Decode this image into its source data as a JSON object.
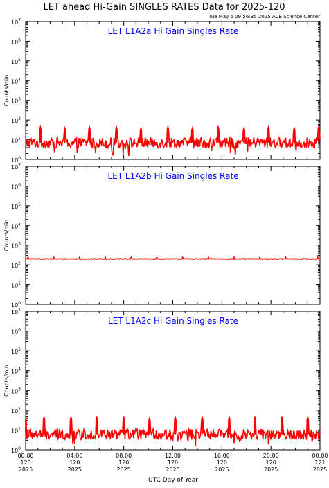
{
  "page": {
    "title": "LET ahead Hi-Gain SINGLES RATES Data for 2025-120",
    "timestamp": "Tue May  6 09:56:35 2025 ACE Science Center",
    "xlabel": "UTC Day of Year",
    "colors": {
      "trace": "#ff0000",
      "panel_title": "#0000ff",
      "axes": "#000000"
    }
  },
  "chart_data": [
    {
      "type": "line",
      "title": "LET L1A2a Hi Gain Singles Rate",
      "ylabel": "Counts/min",
      "yscale": "log",
      "ylim": [
        1,
        10000000
      ],
      "xlim": [
        0,
        24
      ],
      "x_unit": "hours UTC, day 120 2025",
      "series": [
        {
          "baseline": 7,
          "spikes": [
            {
              "x": 1.2,
              "y": 45
            },
            {
              "x": 3.2,
              "y": 40
            },
            {
              "x": 5.2,
              "y": 45
            },
            {
              "x": 7.4,
              "y": 45
            },
            {
              "x": 9.4,
              "y": 40
            },
            {
              "x": 11.6,
              "y": 45
            },
            {
              "x": 13.6,
              "y": 40
            },
            {
              "x": 15.7,
              "y": 45
            },
            {
              "x": 17.8,
              "y": 40
            },
            {
              "x": 19.8,
              "y": 45
            },
            {
              "x": 21.9,
              "y": 40
            },
            {
              "x": 23.9,
              "y": 45
            }
          ]
        }
      ]
    },
    {
      "type": "line",
      "title": "LET L1A2b Hi Gain Singles Rate",
      "ylabel": "Counts/min",
      "yscale": "log",
      "ylim": [
        1,
        10000000
      ],
      "xlim": [
        0,
        24
      ],
      "x_unit": "hours UTC, day 120 2025",
      "series": [
        {
          "baseline": 200,
          "spikes": [
            {
              "x": 0.2,
              "y": 250
            },
            {
              "x": 2.3,
              "y": 240
            },
            {
              "x": 4.4,
              "y": 240
            },
            {
              "x": 6.5,
              "y": 240
            },
            {
              "x": 8.6,
              "y": 240
            },
            {
              "x": 10.7,
              "y": 240
            },
            {
              "x": 12.8,
              "y": 240
            },
            {
              "x": 14.9,
              "y": 240
            },
            {
              "x": 17.0,
              "y": 240
            },
            {
              "x": 19.1,
              "y": 240
            },
            {
              "x": 21.2,
              "y": 240
            },
            {
              "x": 23.8,
              "y": 260
            }
          ]
        }
      ]
    },
    {
      "type": "line",
      "title": "LET L1A2c Hi Gain Singles Rate",
      "ylabel": "Counts/min",
      "yscale": "log",
      "ylim": [
        1,
        10000000
      ],
      "xlim": [
        0,
        24
      ],
      "x_unit": "hours UTC, day 120 2025",
      "series": [
        {
          "baseline": 6,
          "spikes": [
            {
              "x": 0.0,
              "y": 40
            },
            {
              "x": 1.5,
              "y": 45
            },
            {
              "x": 3.7,
              "y": 45
            },
            {
              "x": 5.8,
              "y": 45
            },
            {
              "x": 8.0,
              "y": 45
            },
            {
              "x": 10.1,
              "y": 40
            },
            {
              "x": 12.2,
              "y": 45
            },
            {
              "x": 14.4,
              "y": 45
            },
            {
              "x": 16.6,
              "y": 45
            },
            {
              "x": 18.7,
              "y": 45
            },
            {
              "x": 20.9,
              "y": 45
            },
            {
              "x": 23.0,
              "y": 45
            }
          ]
        }
      ]
    }
  ],
  "x_ticks": [
    {
      "hour": 0,
      "time": "00:00",
      "doy": "120",
      "year": "2025"
    },
    {
      "hour": 4,
      "time": "04:00",
      "doy": "120",
      "year": "2025"
    },
    {
      "hour": 8,
      "time": "08:00",
      "doy": "120",
      "year": "2025"
    },
    {
      "hour": 12,
      "time": "12:00",
      "doy": "120",
      "year": "2025"
    },
    {
      "hour": 16,
      "time": "16:00",
      "doy": "120",
      "year": "2025"
    },
    {
      "hour": 20,
      "time": "20:00",
      "doy": "120",
      "year": "2025"
    },
    {
      "hour": 24,
      "time": "00:00",
      "doy": "121",
      "year": "2025"
    }
  ],
  "y_ticks": [
    {
      "value": 1,
      "base": "10",
      "exp": "0"
    },
    {
      "value": 10,
      "base": "10",
      "exp": "1"
    },
    {
      "value": 100,
      "base": "10",
      "exp": "2"
    },
    {
      "value": 1000,
      "base": "10",
      "exp": "3"
    },
    {
      "value": 10000,
      "base": "10",
      "exp": "4"
    },
    {
      "value": 100000,
      "base": "10",
      "exp": "5"
    },
    {
      "value": 1000000,
      "base": "10",
      "exp": "6"
    },
    {
      "value": 10000000,
      "base": "10",
      "exp": "7"
    }
  ]
}
